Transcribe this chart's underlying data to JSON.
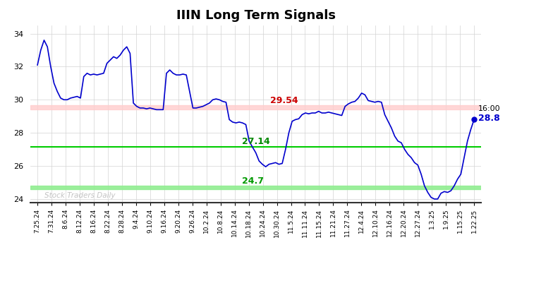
{
  "title": "IIIN Long Term Signals",
  "red_line": 29.54,
  "green_line_upper": 27.14,
  "green_line_lower": 24.7,
  "annotation_red": "29.54",
  "annotation_green_upper": "27.14",
  "annotation_green_lower": "24.7",
  "annotation_final_time": "16:00",
  "annotation_final_price": "28.8",
  "watermark": "Stock Traders Daily",
  "ylim": [
    23.8,
    34.5
  ],
  "x_labels": [
    "7.25.24",
    "7.31.24",
    "8.6.24",
    "8.12.24",
    "8.16.24",
    "8.22.24",
    "8.28.24",
    "9.4.24",
    "9.10.24",
    "9.16.24",
    "9.20.24",
    "9.26.24",
    "10.2.24",
    "10.8.24",
    "10.14.24",
    "10.18.24",
    "10.24.24",
    "10.30.24",
    "11.5.24",
    "11.11.24",
    "11.15.24",
    "11.21.24",
    "11.27.24",
    "12.4.24",
    "12.10.24",
    "12.16.24",
    "12.20.24",
    "12.27.24",
    "1.3.25",
    "1.9.25",
    "1.15.25",
    "1.22.25"
  ],
  "prices": [
    32.1,
    33.0,
    33.6,
    33.2,
    32.0,
    31.0,
    30.5,
    30.1,
    30.0,
    30.0,
    30.1,
    30.15,
    30.2,
    30.1,
    31.4,
    31.6,
    31.5,
    31.55,
    31.5,
    31.55,
    31.6,
    32.2,
    32.4,
    32.6,
    32.5,
    32.7,
    33.0,
    33.2,
    32.8,
    29.8,
    29.6,
    29.5,
    29.5,
    29.45,
    29.5,
    29.45,
    29.4,
    29.4,
    29.4,
    31.6,
    31.8,
    31.6,
    31.5,
    31.5,
    31.55,
    31.5,
    30.5,
    29.5,
    29.5,
    29.55,
    29.6,
    29.7,
    29.8,
    30.0,
    30.05,
    30.0,
    29.9,
    29.85,
    28.8,
    28.65,
    28.6,
    28.65,
    28.6,
    28.5,
    27.5,
    27.14,
    26.8,
    26.3,
    26.1,
    25.95,
    26.1,
    26.15,
    26.2,
    26.1,
    26.15,
    27.0,
    28.0,
    28.7,
    28.8,
    28.85,
    29.1,
    29.2,
    29.15,
    29.2,
    29.2,
    29.3,
    29.2,
    29.2,
    29.25,
    29.2,
    29.15,
    29.1,
    29.05,
    29.6,
    29.75,
    29.85,
    29.9,
    30.1,
    30.4,
    30.3,
    29.95,
    29.9,
    29.85,
    29.9,
    29.85,
    29.1,
    28.7,
    28.3,
    27.8,
    27.5,
    27.4,
    27.0,
    26.7,
    26.5,
    26.2,
    26.05,
    25.5,
    24.8,
    24.4,
    24.1,
    24.0,
    24.0,
    24.35,
    24.45,
    24.4,
    24.5,
    24.8,
    25.2,
    25.5,
    26.5,
    27.5,
    28.2,
    28.8
  ],
  "line_color": "#0000cd",
  "red_band_color": "#ffcccc",
  "red_line_color": "#ffaaaa",
  "green_upper_color": "#00cc00",
  "green_lower_color": "#90ee90",
  "background_color": "#ffffff",
  "grid_color": "#d3d3d3",
  "watermark_color": "#aaaaaa"
}
